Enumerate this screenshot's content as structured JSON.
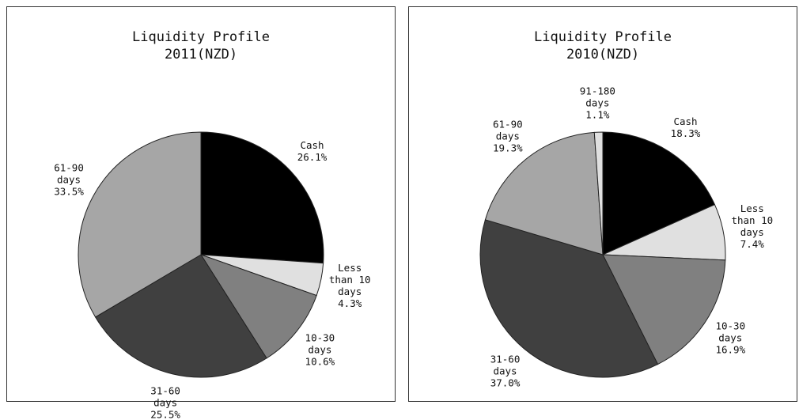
{
  "chart_data": [
    {
      "type": "pie",
      "title": "Liquidity Profile",
      "subtitle": "2011(NZD)",
      "categories": [
        "Cash",
        "Less than 10 days",
        "10-30 days",
        "31-60 days",
        "61-90 days"
      ],
      "values": [
        26.1,
        4.3,
        10.6,
        25.5,
        33.5
      ],
      "value_labels": [
        "26.1%",
        "4.3%",
        "10.6%",
        "25.5%",
        "33.5%"
      ],
      "colors": [
        "#000000",
        "#e0e0e0",
        "#808080",
        "#404040",
        "#a6a6a6"
      ]
    },
    {
      "type": "pie",
      "title": "Liquidity Profile",
      "subtitle": "2010(NZD)",
      "categories": [
        "Cash",
        "Less than 10 days",
        "10-30 days",
        "31-60 days",
        "61-90 days",
        "91-180 days"
      ],
      "values": [
        18.3,
        7.4,
        16.9,
        37.0,
        19.3,
        1.1
      ],
      "value_labels": [
        "18.3%",
        "7.4%",
        "16.9%",
        "37.0%",
        "19.3%",
        "1.1%"
      ],
      "colors": [
        "#000000",
        "#e0e0e0",
        "#808080",
        "#404040",
        "#a6a6a6",
        "#e0e0e0"
      ]
    }
  ]
}
